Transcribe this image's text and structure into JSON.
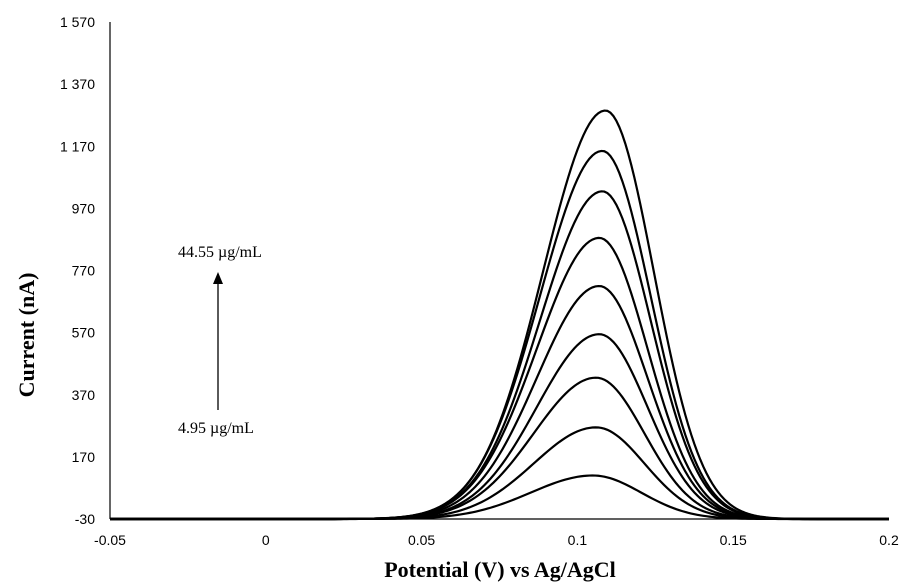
{
  "chart_data": {
    "type": "line",
    "title": "",
    "xlabel": "Potential (V) vs Ag/AgCl",
    "ylabel": "Current (nA)",
    "xlim": [
      -0.05,
      0.2
    ],
    "ylim": [
      -30,
      1570
    ],
    "x_ticks": [
      "-0.05",
      "0",
      "0.05",
      "0.1",
      "0.15",
      "0.2"
    ],
    "x_tick_values": [
      -0.05,
      0,
      0.05,
      0.1,
      0.15,
      0.2
    ],
    "y_ticks": [
      "-30",
      "170",
      "370",
      "570",
      "770",
      "970",
      "1 170",
      "1 370",
      "1 570"
    ],
    "y_tick_values": [
      -30,
      170,
      370,
      570,
      770,
      970,
      1170,
      1370,
      1570
    ],
    "grid": false,
    "legend": "none",
    "line_color": "#000000",
    "series": [
      {
        "peak_x": 0.105,
        "peak_y": 110
      },
      {
        "peak_x": 0.106,
        "peak_y": 265
      },
      {
        "peak_x": 0.106,
        "peak_y": 425
      },
      {
        "peak_x": 0.107,
        "peak_y": 565
      },
      {
        "peak_x": 0.107,
        "peak_y": 720
      },
      {
        "peak_x": 0.107,
        "peak_y": 875
      },
      {
        "peak_x": 0.108,
        "peak_y": 1025
      },
      {
        "peak_x": 0.108,
        "peak_y": 1155
      },
      {
        "peak_x": 0.109,
        "peak_y": 1285
      }
    ],
    "baseline": -30,
    "annotations": {
      "top_label": "44.55 µg/mL",
      "bottom_label": "4.95 µg/mL"
    }
  }
}
